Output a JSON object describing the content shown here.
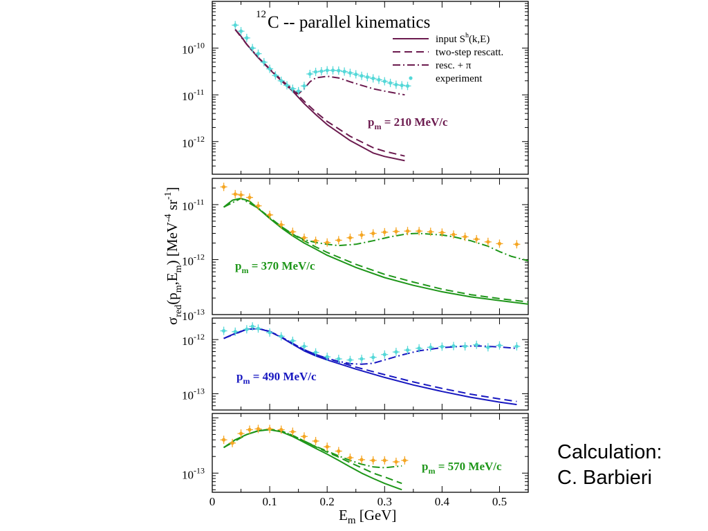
{
  "title_prefix": "12",
  "title_text": "C -- parallel kinematics",
  "credit": {
    "line1": "Calculation:",
    "line2": "C. Barbieri"
  },
  "colors": {
    "purple": "#6b1a4e",
    "green": "#1e9619",
    "blue": "#1717c0",
    "cyan": "#55d8d8",
    "orange": "#f5a623"
  },
  "legend": [
    {
      "style": "solid",
      "text": "input S",
      "sup": "h",
      "tail": "(k,E)"
    },
    {
      "style": "dashed",
      "text": "two-step rescatt.",
      "sup": "",
      "tail": ""
    },
    {
      "style": "dashdot",
      "text": "resc. + π",
      "sup": "",
      "tail": ""
    },
    {
      "style": "point",
      "text": "experiment",
      "sup": "",
      "tail": ""
    }
  ],
  "ylabel": {
    "sigma": "σ",
    "red": "red",
    "open": "(p",
    "m1": "m",
    "comma": ",E",
    "m2": "m",
    "close": ") [MeV",
    "exp4": "-4",
    "sr": " sr",
    "exp1": "-1",
    "bracket": "]"
  },
  "xlabel": {
    "main": "E",
    "sub": "m",
    "unit": " [GeV]"
  },
  "xticks": [
    "0",
    "0.1",
    "0.2",
    "0.3",
    "0.4",
    "0.5"
  ],
  "chart_data": [
    {
      "type": "line",
      "yscale": "log",
      "xlim": [
        0,
        0.55
      ],
      "ylim": [
        2e-13,
        1e-09
      ],
      "label_main": "p",
      "label_sub": "m",
      "label_rest": " = 210 MeV/c",
      "color_key": "purple",
      "ytick_labels": [
        {
          "mant": "10",
          "exp": "-10",
          "value": 1e-10
        },
        {
          "mant": "10",
          "exp": "-11",
          "value": 1e-11
        },
        {
          "mant": "10",
          "exp": "-12",
          "value": 1e-12
        }
      ],
      "series": [
        {
          "style": "solid",
          "x": [
            0.04,
            0.05,
            0.06,
            0.08,
            0.1,
            0.12,
            0.14,
            0.16,
            0.18,
            0.2,
            0.24,
            0.28,
            0.3,
            0.335
          ],
          "y": [
            2.5e-10,
            1.8e-10,
            1.2e-10,
            6.2e-11,
            3.5e-11,
            2e-11,
            1.2e-11,
            6.5e-12,
            3.8e-12,
            2.3e-12,
            1.05e-12,
            5.7e-13,
            4.8e-13,
            3.9e-13
          ]
        },
        {
          "style": "dashed",
          "x": [
            0.04,
            0.05,
            0.06,
            0.08,
            0.1,
            0.12,
            0.14,
            0.16,
            0.18,
            0.2,
            0.24,
            0.28,
            0.3,
            0.335
          ],
          "y": [
            2.5e-10,
            1.8e-10,
            1.2e-10,
            6.3e-11,
            3.6e-11,
            2.1e-11,
            1.3e-11,
            7.3e-12,
            4.3e-12,
            2.7e-12,
            1.3e-12,
            7.4e-13,
            6.2e-13,
            4.9e-13
          ]
        },
        {
          "style": "dashdot",
          "x": [
            0.04,
            0.06,
            0.08,
            0.1,
            0.12,
            0.14,
            0.15,
            0.16,
            0.17,
            0.18,
            0.2,
            0.22,
            0.24,
            0.26,
            0.28,
            0.3,
            0.335
          ],
          "y": [
            2.5e-10,
            1.2e-10,
            6.3e-11,
            3.6e-11,
            2.1e-11,
            1.3e-11,
            1.05e-11,
            1.35e-11,
            1.9e-11,
            2.3e-11,
            2.5e-11,
            2.3e-11,
            1.9e-11,
            1.6e-11,
            1.35e-11,
            1.2e-11,
            1e-11
          ]
        }
      ],
      "experiment": {
        "color_key": "cyan",
        "x": [
          0.04,
          0.05,
          0.06,
          0.07,
          0.08,
          0.09,
          0.1,
          0.11,
          0.12,
          0.13,
          0.14,
          0.15,
          0.16,
          0.17,
          0.18,
          0.19,
          0.2,
          0.21,
          0.22,
          0.23,
          0.24,
          0.25,
          0.26,
          0.27,
          0.28,
          0.29,
          0.3,
          0.31,
          0.32,
          0.33,
          0.34
        ],
        "y": [
          3.1e-10,
          2.3e-10,
          1.65e-10,
          1e-10,
          7.6e-11,
          5e-11,
          3.6e-11,
          2.6e-11,
          2e-11,
          1.6e-11,
          1.35e-11,
          1.2e-11,
          1.55e-11,
          2.8e-11,
          3.1e-11,
          3.2e-11,
          3.35e-11,
          3.35e-11,
          3.3e-11,
          3.15e-11,
          2.95e-11,
          2.75e-11,
          2.55e-11,
          2.4e-11,
          2.25e-11,
          2.1e-11,
          1.95e-11,
          1.8e-11,
          1.65e-11,
          1.6e-11,
          1.55e-11
        ]
      }
    },
    {
      "type": "line",
      "yscale": "log",
      "xlim": [
        0,
        0.55
      ],
      "ylim": [
        1e-13,
        3e-11
      ],
      "label_main": "p",
      "label_sub": "m",
      "label_rest": " = 370 MeV/c",
      "color_key": "green",
      "ytick_labels": [
        {
          "mant": "10",
          "exp": "-11",
          "value": 1e-11
        },
        {
          "mant": "10",
          "exp": "-12",
          "value": 1e-12
        },
        {
          "mant": "10",
          "exp": "-13",
          "value": 1e-13
        }
      ],
      "series": [
        {
          "style": "solid",
          "x": [
            0.02,
            0.035,
            0.05,
            0.065,
            0.08,
            0.1,
            0.12,
            0.14,
            0.16,
            0.18,
            0.2,
            0.25,
            0.3,
            0.35,
            0.4,
            0.45,
            0.5,
            0.55
          ],
          "y": [
            9e-12,
            1.2e-11,
            1.3e-11,
            1.15e-11,
            8.5e-12,
            5.6e-12,
            3.8e-12,
            2.7e-12,
            2e-12,
            1.55e-12,
            1.2e-12,
            7.2e-13,
            4.7e-13,
            3.4e-13,
            2.6e-13,
            2.1e-13,
            1.8e-13,
            1.55e-13
          ]
        },
        {
          "style": "dashed",
          "x": [
            0.02,
            0.035,
            0.05,
            0.065,
            0.08,
            0.1,
            0.12,
            0.14,
            0.16,
            0.18,
            0.2,
            0.25,
            0.3,
            0.35,
            0.4,
            0.45,
            0.5,
            0.55
          ],
          "y": [
            9e-12,
            1.2e-11,
            1.3e-11,
            1.15e-11,
            8.6e-12,
            5.8e-12,
            4e-12,
            2.9e-12,
            2.2e-12,
            1.7e-12,
            1.35e-12,
            8.2e-13,
            5.4e-13,
            3.9e-13,
            2.9e-13,
            2.3e-13,
            1.95e-13,
            1.7e-13
          ]
        },
        {
          "style": "dashdot",
          "x": [
            0.02,
            0.05,
            0.08,
            0.1,
            0.12,
            0.14,
            0.16,
            0.18,
            0.2,
            0.22,
            0.25,
            0.28,
            0.31,
            0.34,
            0.36,
            0.38,
            0.4,
            0.42,
            0.45,
            0.48,
            0.5,
            0.52,
            0.55
          ],
          "y": [
            9e-12,
            1.3e-11,
            8.6e-12,
            5.8e-12,
            4e-12,
            2.9e-12,
            2.3e-12,
            2.05e-12,
            1.9e-12,
            1.8e-12,
            1.9e-12,
            2.2e-12,
            2.6e-12,
            2.95e-12,
            3e-12,
            2.9e-12,
            2.8e-12,
            2.6e-12,
            2.2e-12,
            1.75e-12,
            1.4e-12,
            1.15e-12,
            9.5e-13
          ]
        }
      ],
      "experiment": {
        "color_key": "orange",
        "x": [
          0.02,
          0.04,
          0.05,
          0.065,
          0.08,
          0.1,
          0.12,
          0.14,
          0.16,
          0.18,
          0.2,
          0.22,
          0.24,
          0.26,
          0.28,
          0.3,
          0.32,
          0.34,
          0.36,
          0.38,
          0.4,
          0.42,
          0.44,
          0.46,
          0.48,
          0.5,
          0.53
        ],
        "y": [
          2.1e-11,
          1.55e-11,
          1.5e-11,
          1.35e-11,
          9.5e-12,
          6.5e-12,
          4.3e-12,
          3.2e-12,
          2.5e-12,
          2.2e-12,
          2.05e-12,
          2.25e-12,
          2.5e-12,
          2.8e-12,
          3e-12,
          3.15e-12,
          3.25e-12,
          3.3e-12,
          3.3e-12,
          3.2e-12,
          3.1e-12,
          2.85e-12,
          2.6e-12,
          2.35e-12,
          2.1e-12,
          1.95e-12,
          1.9e-12
        ]
      }
    },
    {
      "type": "line",
      "yscale": "log",
      "xlim": [
        0,
        0.55
      ],
      "ylim": [
        5e-14,
        2.5e-12
      ],
      "label_main": "p",
      "label_sub": "m",
      "label_rest": " = 490 MeV/c",
      "color_key": "blue",
      "ytick_labels": [
        {
          "mant": "10",
          "exp": "-12",
          "value": 1e-12
        },
        {
          "mant": "10",
          "exp": "-13",
          "value": 1e-13
        }
      ],
      "series": [
        {
          "style": "solid",
          "x": [
            0.02,
            0.04,
            0.06,
            0.08,
            0.1,
            0.12,
            0.14,
            0.16,
            0.18,
            0.2,
            0.25,
            0.3,
            0.35,
            0.4,
            0.45,
            0.5,
            0.53
          ],
          "y": [
            1.05e-12,
            1.3e-12,
            1.55e-12,
            1.6e-12,
            1.4e-12,
            1.1e-12,
            8.2e-13,
            6.2e-13,
            5e-13,
            4.2e-13,
            2.85e-13,
            2e-13,
            1.45e-13,
            1.1e-13,
            8.6e-14,
            7e-14,
            6.3e-14
          ]
        },
        {
          "style": "dashed",
          "x": [
            0.02,
            0.04,
            0.06,
            0.08,
            0.1,
            0.12,
            0.14,
            0.16,
            0.18,
            0.2,
            0.25,
            0.3,
            0.35,
            0.4,
            0.45,
            0.5,
            0.53
          ],
          "y": [
            1.05e-12,
            1.3e-12,
            1.55e-12,
            1.6e-12,
            1.42e-12,
            1.12e-12,
            8.5e-13,
            6.5e-13,
            5.3e-13,
            4.5e-13,
            3.1e-13,
            2.25e-13,
            1.65e-13,
            1.25e-13,
            9.8e-14,
            8e-14,
            7.2e-14
          ]
        },
        {
          "style": "dashdot",
          "x": [
            0.02,
            0.06,
            0.08,
            0.1,
            0.12,
            0.14,
            0.16,
            0.18,
            0.2,
            0.22,
            0.24,
            0.26,
            0.28,
            0.3,
            0.33,
            0.36,
            0.4,
            0.44,
            0.47,
            0.5,
            0.53
          ],
          "y": [
            1.05e-12,
            1.55e-12,
            1.6e-12,
            1.42e-12,
            1.12e-12,
            8.5e-13,
            6.5e-13,
            5.3e-13,
            4.5e-13,
            3.95e-13,
            3.6e-13,
            3.5e-13,
            3.65e-13,
            4.2e-13,
            5.2e-13,
            6.2e-13,
            7.1e-13,
            7.6e-13,
            7.6e-13,
            7.3e-13,
            6.9e-13
          ]
        }
      ],
      "experiment": {
        "color_key": "cyan",
        "x": [
          0.02,
          0.04,
          0.06,
          0.07,
          0.08,
          0.1,
          0.12,
          0.14,
          0.16,
          0.18,
          0.2,
          0.22,
          0.24,
          0.26,
          0.28,
          0.3,
          0.32,
          0.34,
          0.36,
          0.38,
          0.4,
          0.42,
          0.44,
          0.46,
          0.48,
          0.5,
          0.53
        ],
        "y": [
          1.45e-12,
          1.4e-12,
          1.55e-12,
          1.75e-12,
          1.6e-12,
          1.35e-12,
          1.15e-12,
          9.5e-13,
          7.5e-13,
          5.8e-13,
          4.8e-13,
          4.4e-13,
          4.2e-13,
          4.4e-13,
          4.7e-13,
          5.3e-13,
          5.9e-13,
          6.4e-13,
          6.9e-13,
          7.2e-13,
          7.4e-13,
          7.6e-13,
          7.5e-13,
          8e-13,
          7.2e-13,
          7.8e-13,
          7.5e-13
        ]
      }
    },
    {
      "type": "line",
      "yscale": "log",
      "xlim": [
        0,
        0.55
      ],
      "ylim": [
        4.5e-14,
        1.2e-12
      ],
      "label_main": "p",
      "label_sub": "m",
      "label_rest": " = 570 MeV/c",
      "color_key": "green",
      "ytick_labels": [
        {
          "mant": "10",
          "exp": "-13",
          "value": 1e-13
        }
      ],
      "series": [
        {
          "style": "solid",
          "x": [
            0.02,
            0.04,
            0.06,
            0.08,
            0.1,
            0.12,
            0.14,
            0.16,
            0.18,
            0.2,
            0.22,
            0.24,
            0.26,
            0.28,
            0.3,
            0.33
          ],
          "y": [
            2.9e-13,
            4e-13,
            5e-13,
            5.8e-13,
            6.1e-13,
            5.6e-13,
            4.6e-13,
            3.6e-13,
            2.8e-13,
            2.2e-13,
            1.7e-13,
            1.3e-13,
            1e-13,
            8e-14,
            6.5e-14,
            5e-14
          ]
        },
        {
          "style": "dashed",
          "x": [
            0.02,
            0.04,
            0.06,
            0.08,
            0.1,
            0.12,
            0.14,
            0.16,
            0.18,
            0.2,
            0.22,
            0.24,
            0.26,
            0.28,
            0.3,
            0.33
          ],
          "y": [
            2.9e-13,
            4e-13,
            5e-13,
            5.85e-13,
            6.2e-13,
            5.8e-13,
            4.8e-13,
            3.8e-13,
            3e-13,
            2.4e-13,
            1.95e-13,
            1.55e-13,
            1.25e-13,
            1e-13,
            8.5e-14,
            6.5e-14
          ]
        },
        {
          "style": "dashdot",
          "x": [
            0.02,
            0.06,
            0.08,
            0.1,
            0.12,
            0.14,
            0.16,
            0.18,
            0.2,
            0.22,
            0.24,
            0.26,
            0.28,
            0.3,
            0.33
          ],
          "y": [
            2.9e-13,
            5e-13,
            5.85e-13,
            6.2e-13,
            5.8e-13,
            4.8e-13,
            3.8e-13,
            3.05e-13,
            2.5e-13,
            2.05e-13,
            1.7e-13,
            1.45e-13,
            1.3e-13,
            1.25e-13,
            1.35e-13
          ]
        }
      ],
      "experiment": {
        "color_key": "orange",
        "x": [
          0.02,
          0.035,
          0.05,
          0.065,
          0.08,
          0.1,
          0.12,
          0.14,
          0.16,
          0.18,
          0.2,
          0.22,
          0.24,
          0.26,
          0.28,
          0.3,
          0.32,
          0.335
        ],
        "y": [
          4e-13,
          3.5e-13,
          5.2e-13,
          6.1e-13,
          6.3e-13,
          6.3e-13,
          6.1e-13,
          5.6e-13,
          4.6e-13,
          3.8e-13,
          3e-13,
          2.5e-13,
          1.9e-13,
          1.75e-13,
          1.7e-13,
          1.7e-13,
          1.6e-13,
          1.7e-13
        ]
      }
    }
  ]
}
